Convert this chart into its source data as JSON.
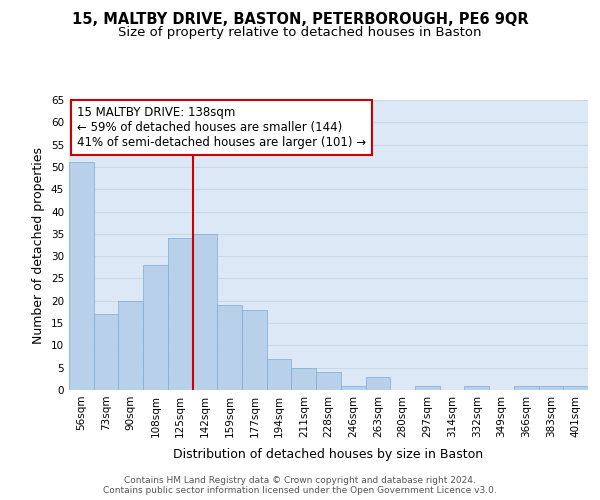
{
  "title1": "15, MALTBY DRIVE, BASTON, PETERBOROUGH, PE6 9QR",
  "title2": "Size of property relative to detached houses in Baston",
  "xlabel": "Distribution of detached houses by size in Baston",
  "ylabel": "Number of detached properties",
  "categories": [
    "56sqm",
    "73sqm",
    "90sqm",
    "108sqm",
    "125sqm",
    "142sqm",
    "159sqm",
    "177sqm",
    "194sqm",
    "211sqm",
    "228sqm",
    "246sqm",
    "263sqm",
    "280sqm",
    "297sqm",
    "314sqm",
    "332sqm",
    "349sqm",
    "366sqm",
    "383sqm",
    "401sqm"
  ],
  "values": [
    51,
    17,
    20,
    28,
    34,
    35,
    19,
    18,
    7,
    5,
    4,
    1,
    3,
    0,
    1,
    0,
    1,
    0,
    1,
    1,
    1
  ],
  "bar_color": "#b8d0ea",
  "bar_edge_color": "#7aadd4",
  "vline_color": "#cc0000",
  "annotation_text": "15 MALTBY DRIVE: 138sqm\n← 59% of detached houses are smaller (144)\n41% of semi-detached houses are larger (101) →",
  "annotation_box_color": "#ffffff",
  "annotation_box_edge_color": "#cc0000",
  "ylim": [
    0,
    65
  ],
  "yticks": [
    0,
    5,
    10,
    15,
    20,
    25,
    30,
    35,
    40,
    45,
    50,
    55,
    60,
    65
  ],
  "grid_color": "#c8d8e8",
  "bg_color": "#dce8f5",
  "footnote": "Contains HM Land Registry data © Crown copyright and database right 2024.\nContains public sector information licensed under the Open Government Licence v3.0.",
  "title_fontsize": 10.5,
  "subtitle_fontsize": 9.5,
  "tick_fontsize": 7.5,
  "xlabel_fontsize": 9,
  "ylabel_fontsize": 9,
  "annot_fontsize": 8.5,
  "footnote_fontsize": 6.5
}
